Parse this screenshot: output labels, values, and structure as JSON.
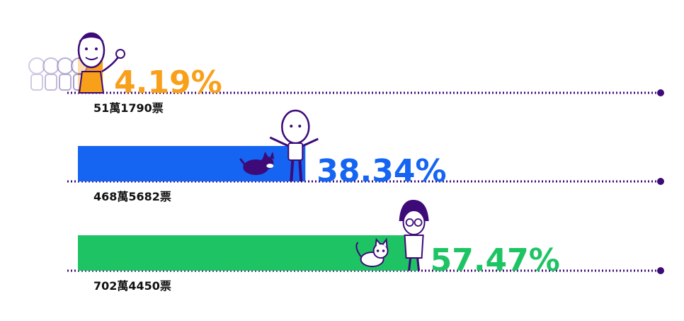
{
  "chart_data": {
    "type": "bar",
    "orientation": "horizontal",
    "xlim": [
      0,
      100
    ],
    "grid": false,
    "colors": {
      "axis": "#3d0a78",
      "ink": "#3d0a78"
    },
    "series": [
      {
        "value": 4.19,
        "label": "4.19%",
        "votes": "51萬1790票",
        "color": "#f9a01b",
        "icon": "waving-candidate-caricature-icon"
      },
      {
        "value": 38.34,
        "label": "38.34%",
        "votes": "468萬5682票",
        "color": "#1565f2",
        "icon": "arms-out-candidate-caricature-icon"
      },
      {
        "value": 57.47,
        "label": "57.47%",
        "votes": "702萬4450票",
        "color": "#1ec464",
        "icon": "glasses-candidate-caricature-icon"
      }
    ]
  }
}
